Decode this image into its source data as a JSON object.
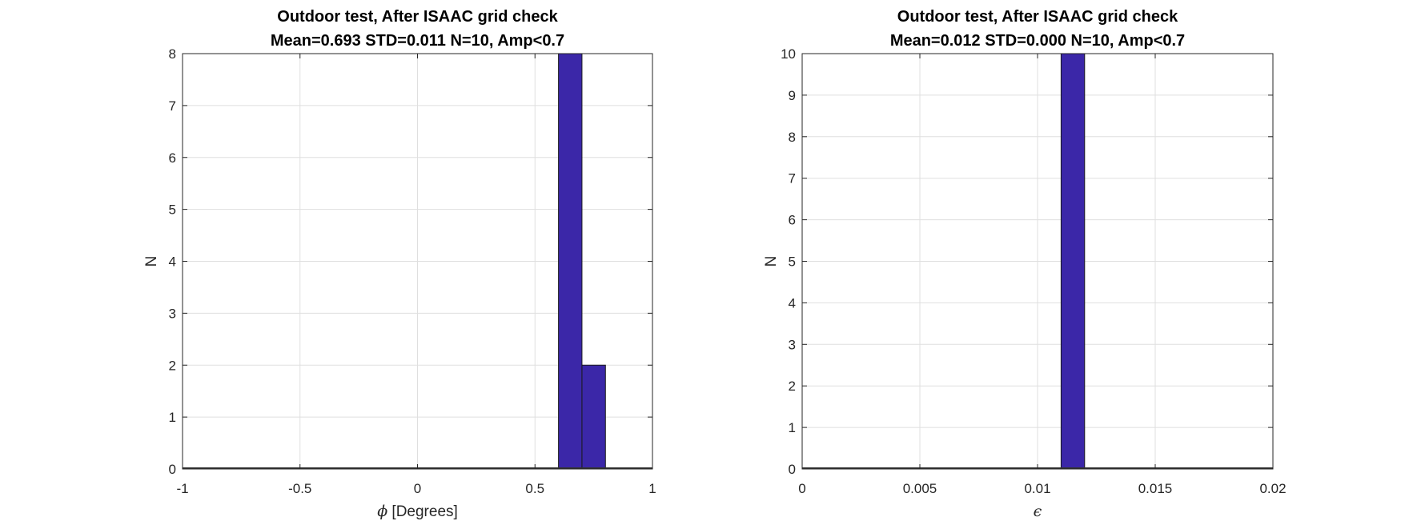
{
  "chart_data": [
    {
      "type": "bar",
      "title": [
        "Outdoor test, After ISAAC grid check",
        "Mean=0.693 STD=0.011 N=10, Amp<0.7"
      ],
      "xlabel_symbol": "ϕ",
      "xlabel_text": " [Degrees]",
      "ylabel": "N",
      "xlim": [
        -1,
        1
      ],
      "ylim": [
        0,
        8
      ],
      "xticks": [
        -1,
        -0.5,
        0,
        0.5,
        1
      ],
      "xtick_labels": [
        "-1",
        "-0.5",
        "0",
        "0.5",
        "1"
      ],
      "yticks": [
        0,
        1,
        2,
        3,
        4,
        5,
        6,
        7,
        8
      ],
      "grid": true,
      "bins": [
        {
          "x0": 0.6,
          "x1": 0.7,
          "count": 8
        },
        {
          "x0": 0.7,
          "x1": 0.8,
          "count": 2
        }
      ],
      "bar_color": "#3b27a8"
    },
    {
      "type": "bar",
      "title": [
        "Outdoor test, After ISAAC grid check",
        "Mean=0.012 STD=0.000 N=10, Amp<0.7"
      ],
      "xlabel_symbol": "ϵ",
      "xlabel_text": "",
      "ylabel": "N",
      "xlim": [
        0,
        0.02
      ],
      "ylim": [
        0,
        10
      ],
      "xticks": [
        0,
        0.005,
        0.01,
        0.015,
        0.02
      ],
      "xtick_labels": [
        "0",
        "0.005",
        "0.01",
        "0.015",
        "0.02"
      ],
      "yticks": [
        0,
        1,
        2,
        3,
        4,
        5,
        6,
        7,
        8,
        9,
        10
      ],
      "grid": true,
      "bins": [
        {
          "x0": 0.011,
          "x1": 0.012,
          "count": 10
        }
      ],
      "bar_color": "#3b27a8"
    }
  ]
}
